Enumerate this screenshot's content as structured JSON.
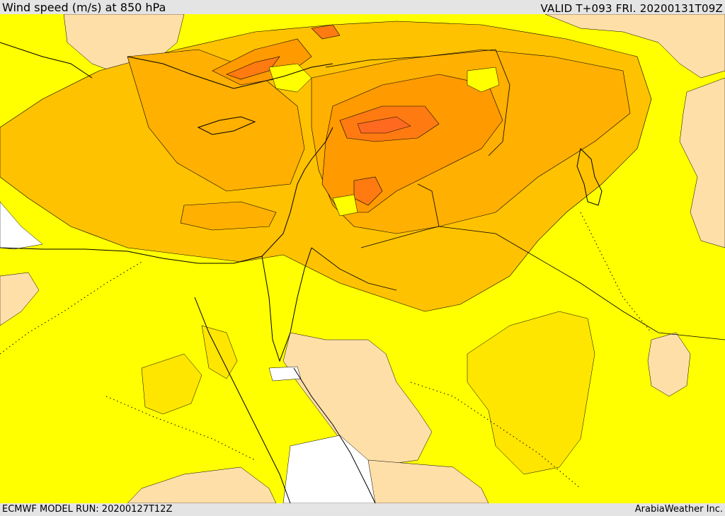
{
  "header": {
    "title": "Wind speed (m/s) at 850 hPa",
    "valid_time": "VALID T+093 FRI. 20200131T09Z"
  },
  "footer": {
    "model_run": "ECMWF MODEL RUN: 20200127T12Z",
    "credit": "ArabiaWeather Inc."
  },
  "colors": {
    "level_1": "#ffff00",
    "level_2": "#ffe600",
    "level_3": "#ffc200",
    "level_4": "#ffb000",
    "level_5": "#ff9a00",
    "level_6": "#ff7a10",
    "level_7": "#ff6a20",
    "land_tan": "#ffdfa8",
    "calm_white": "#ffffff",
    "contour": "#000000"
  }
}
